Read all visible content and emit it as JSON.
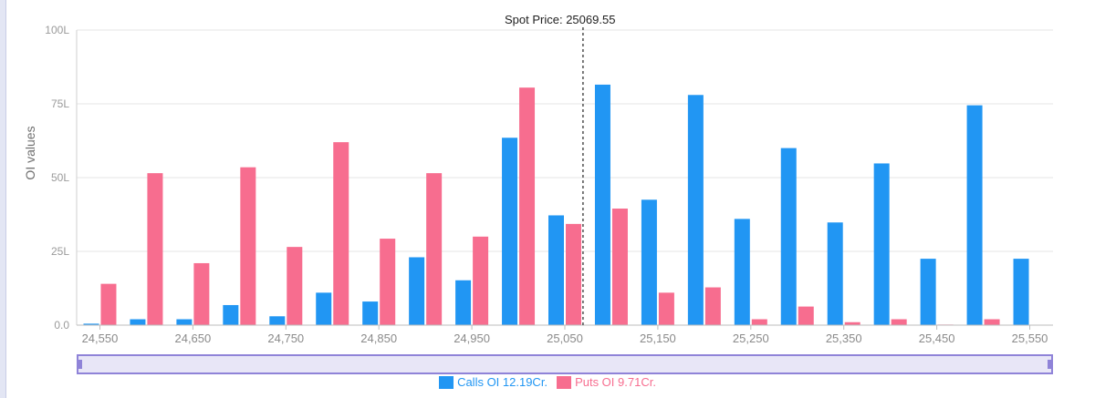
{
  "chart_data": {
    "type": "bar",
    "title": "",
    "xlabel": "",
    "ylabel": "OI values",
    "ylim": [
      0,
      100
    ],
    "y_ticks": [
      "0.0",
      "25L",
      "50L",
      "75L",
      "100L"
    ],
    "y_tick_values": [
      0,
      25,
      50,
      75,
      100
    ],
    "x_tick_labels": [
      "24,550",
      "24,650",
      "24,750",
      "24,850",
      "24,950",
      "25,050",
      "25,150",
      "25,250",
      "25,350",
      "25,450",
      "25,550"
    ],
    "categories": [
      24550,
      24600,
      24650,
      24700,
      24750,
      24800,
      24850,
      24900,
      24950,
      25000,
      25050,
      25100,
      25150,
      25200,
      25250,
      25300,
      25350,
      25400,
      25450,
      25500,
      25550
    ],
    "series": [
      {
        "name": "Calls OI",
        "color": "#2196F3",
        "values": [
          0.5,
          2,
          2,
          6.8,
          3,
          11,
          8,
          23,
          15.2,
          63.5,
          37.2,
          81.5,
          42.5,
          78,
          36,
          60,
          34.8,
          54.8,
          22.5,
          74.5,
          22.5
        ]
      },
      {
        "name": "Puts OI",
        "color": "#F76D8F",
        "values": [
          14,
          51.5,
          21,
          53.5,
          26.5,
          62,
          29.3,
          51.5,
          30,
          80.5,
          34.3,
          39.5,
          11,
          12.8,
          2,
          6.3,
          1,
          2,
          0.2,
          2,
          0.1
        ]
      }
    ],
    "spot_price": 25069.55,
    "spot_label": "Spot Price: 25069.55",
    "grid": true,
    "legend_position": "bottom"
  },
  "legend": {
    "calls_label": "Calls OI 12.19Cr.",
    "puts_label": "Puts OI 9.71Cr."
  },
  "colors": {
    "calls": "#2196F3",
    "puts": "#F76D8F",
    "grid": "#e6e6e6",
    "axis_text": "#9a9a9a",
    "scroll_border": "#8f83d8",
    "scroll_fill": "#e8e6f7"
  }
}
